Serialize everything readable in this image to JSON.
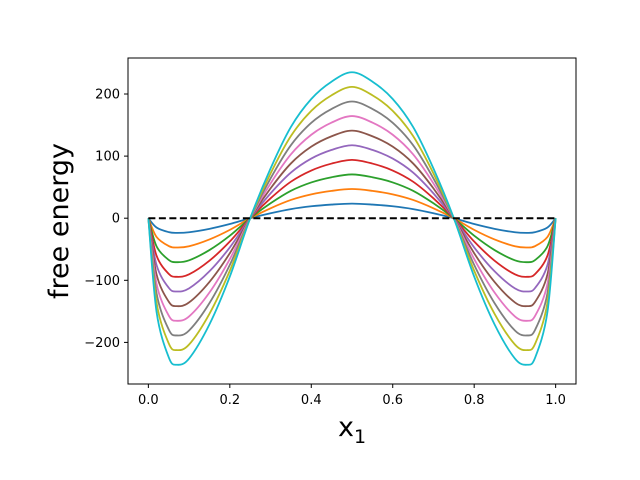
{
  "chart_data": {
    "type": "line",
    "title": "",
    "xlabel": "x",
    "xlabel_sub": "1",
    "ylabel": "free energy",
    "xlim": [
      -0.05,
      1.05
    ],
    "ylim": [
      -267,
      258
    ],
    "xticks": [
      0.0,
      0.2,
      0.4,
      0.6,
      0.8,
      1.0
    ],
    "xtick_labels": [
      "0.0",
      "0.2",
      "0.4",
      "0.6",
      "0.8",
      "1.0"
    ],
    "yticks": [
      -200,
      -100,
      0,
      100,
      200
    ],
    "ytick_labels": [
      "−200",
      "−100",
      "0",
      "100",
      "200"
    ],
    "grid": false,
    "legend": "none",
    "x": [
      0.0,
      0.02,
      0.05,
      0.07,
      0.1,
      0.15,
      0.2,
      0.25,
      0.3,
      0.35,
      0.4,
      0.45,
      0.5,
      0.55,
      0.6,
      0.65,
      0.7,
      0.75,
      0.8,
      0.85,
      0.9,
      0.93,
      0.95,
      0.98,
      1.0
    ],
    "reference_line": {
      "y": 0,
      "style": "dashed",
      "color": "#000000",
      "x_range": [
        0.0,
        1.0
      ]
    },
    "series": [
      {
        "color": "#1f77b4",
        "values": [
          0.0,
          -15.0,
          -22.4,
          -23.6,
          -22.6,
          -17.1,
          -9.4,
          0.0,
          8.0,
          14.7,
          19.2,
          22.0,
          23.5,
          22.0,
          19.2,
          14.7,
          8.0,
          0.0,
          -9.4,
          -17.1,
          -22.6,
          -23.6,
          -22.4,
          -15.0,
          0.0
        ]
      },
      {
        "color": "#ff7f0e",
        "values": [
          0.0,
          -30.1,
          -44.8,
          -47.2,
          -45.2,
          -34.2,
          -18.8,
          0.0,
          16.0,
          29.4,
          38.4,
          44.0,
          47.0,
          44.0,
          38.4,
          29.4,
          16.0,
          0.0,
          -18.8,
          -34.2,
          -45.2,
          -47.2,
          -44.8,
          -30.1,
          0.0
        ]
      },
      {
        "color": "#2ca02c",
        "values": [
          0.0,
          -45.1,
          -67.2,
          -70.8,
          -67.8,
          -51.3,
          -28.2,
          0.0,
          24.0,
          44.1,
          57.6,
          66.0,
          70.5,
          66.0,
          57.6,
          44.1,
          24.0,
          0.0,
          -28.2,
          -51.3,
          -67.8,
          -70.8,
          -67.2,
          -45.1,
          0.0
        ]
      },
      {
        "color": "#d62728",
        "values": [
          0.0,
          -60.2,
          -89.6,
          -94.4,
          -90.4,
          -68.4,
          -37.6,
          0.0,
          32.0,
          58.8,
          76.8,
          88.0,
          94.0,
          88.0,
          76.8,
          58.8,
          32.0,
          0.0,
          -37.6,
          -68.4,
          -90.4,
          -94.4,
          -89.6,
          -60.2,
          0.0
        ]
      },
      {
        "color": "#9467bd",
        "values": [
          0.0,
          -75.2,
          -112.0,
          -118.0,
          -113.0,
          -85.5,
          -47.0,
          0.0,
          40.0,
          73.5,
          96.0,
          110.0,
          117.5,
          110.0,
          96.0,
          73.5,
          40.0,
          0.0,
          -47.0,
          -85.5,
          -113.0,
          -118.0,
          -112.0,
          -75.2,
          0.0
        ]
      },
      {
        "color": "#8c564b",
        "values": [
          0.0,
          -90.2,
          -134.4,
          -141.6,
          -135.6,
          -102.6,
          -56.4,
          0.0,
          48.0,
          88.2,
          115.2,
          132.0,
          141.0,
          132.0,
          115.2,
          88.2,
          48.0,
          0.0,
          -56.4,
          -102.6,
          -135.6,
          -141.6,
          -134.4,
          -90.2,
          0.0
        ]
      },
      {
        "color": "#e377c2",
        "values": [
          0.0,
          -105.3,
          -156.8,
          -165.2,
          -158.2,
          -119.7,
          -65.8,
          0.0,
          56.0,
          102.9,
          134.4,
          154.0,
          164.5,
          154.0,
          134.4,
          102.9,
          56.0,
          0.0,
          -65.8,
          -119.7,
          -158.2,
          -165.2,
          -156.8,
          -105.3,
          0.0
        ]
      },
      {
        "color": "#7f7f7f",
        "values": [
          0.0,
          -120.3,
          -179.2,
          -188.8,
          -180.8,
          -136.8,
          -75.2,
          0.0,
          64.0,
          117.6,
          153.6,
          176.0,
          188.0,
          176.0,
          153.6,
          117.6,
          64.0,
          0.0,
          -75.2,
          -136.8,
          -180.8,
          -188.8,
          -179.2,
          -120.3,
          0.0
        ]
      },
      {
        "color": "#bcbd22",
        "values": [
          0.0,
          -135.4,
          -201.6,
          -212.4,
          -203.4,
          -153.9,
          -84.6,
          0.0,
          72.0,
          132.3,
          172.8,
          198.0,
          211.5,
          198.0,
          172.8,
          132.3,
          72.0,
          0.0,
          -84.6,
          -153.9,
          -203.4,
          -212.4,
          -201.6,
          -135.4,
          0.0
        ]
      },
      {
        "color": "#17becf",
        "values": [
          0.0,
          -150.4,
          -224.0,
          -236.0,
          -226.0,
          -171.0,
          -94.0,
          0.0,
          80.0,
          147.0,
          192.0,
          220.0,
          235.0,
          220.0,
          192.0,
          147.0,
          80.0,
          0.0,
          -94.0,
          -171.0,
          -226.0,
          -236.0,
          -224.0,
          -150.4,
          0.0
        ]
      }
    ]
  }
}
